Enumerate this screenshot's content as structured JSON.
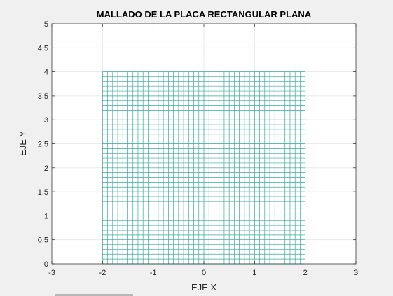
{
  "chart_data": {
    "type": "mesh",
    "title": "MALLADO DE LA PLACA RECTANGULAR PLANA",
    "xlabel": "EJE X",
    "ylabel": "EJE Y",
    "xlim": [
      -3,
      3
    ],
    "ylim": [
      0,
      5
    ],
    "xticks": [
      -3,
      -2,
      -1,
      0,
      1,
      2,
      3
    ],
    "yticks": [
      0,
      0.5,
      1,
      1.5,
      2,
      2.5,
      3,
      3.5,
      4,
      4.5,
      5
    ],
    "xtick_labels": [
      "-3",
      "-2",
      "-1",
      "0",
      "1",
      "2",
      "3"
    ],
    "ytick_labels": [
      "0",
      "0.5",
      "1",
      "1.5",
      "2",
      "2.5",
      "3",
      "3.5",
      "4",
      "4.5",
      "5"
    ],
    "grid": true,
    "mesh": {
      "x_range": [
        -2,
        2
      ],
      "y_range": [
        0,
        4
      ],
      "x_divisions": 40,
      "y_divisions": 40,
      "color": "#3aa89a"
    }
  }
}
